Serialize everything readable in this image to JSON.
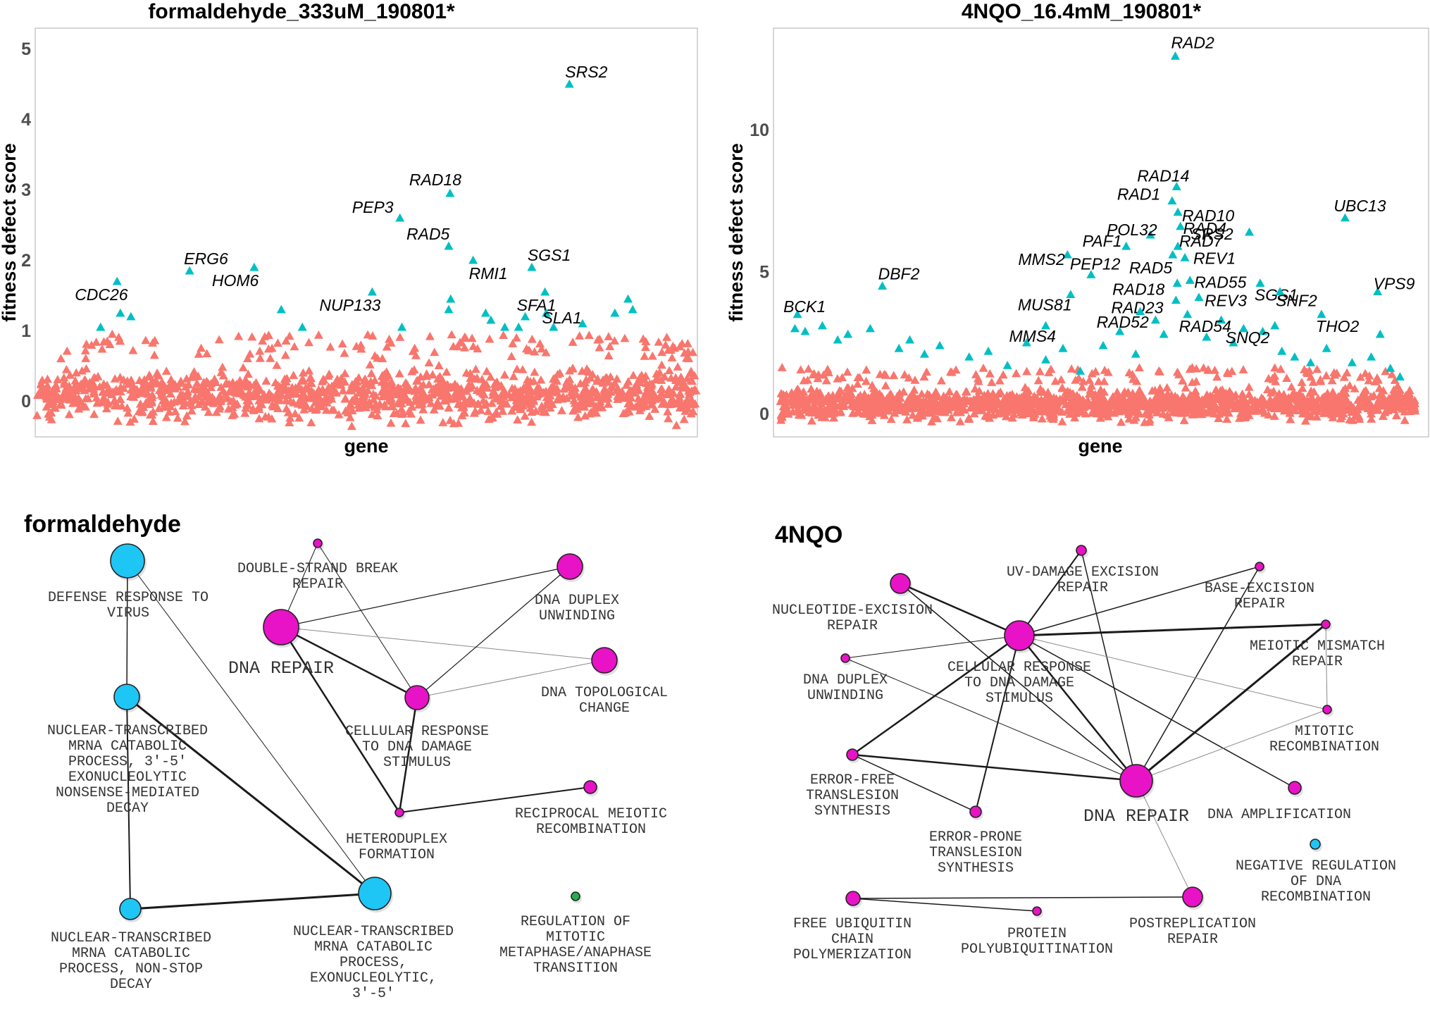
{
  "chart_data": [
    {
      "type": "scatter",
      "title": "formaldehyde_333uM_190801*",
      "xlabel": "gene",
      "ylabel": "fitness defect score",
      "yticks": [
        0,
        1,
        2,
        3,
        4,
        5
      ],
      "ylim": [
        -0.5,
        5.3
      ],
      "grid": false,
      "background_cloud": {
        "color": "#F8766D",
        "y_range": [
          -0.4,
          0.6
        ],
        "x_range": [
          0,
          1
        ],
        "count": 1200
      },
      "colors": {
        "significant": "#00BFC4",
        "nonsignificant": "#F8766D"
      },
      "labeled_points": [
        {
          "gene": "SRS2",
          "x": 0.808,
          "y": 4.5
        },
        {
          "gene": "RAD18",
          "x": 0.627,
          "y": 2.95
        },
        {
          "gene": "PEP3",
          "x": 0.551,
          "y": 2.6
        },
        {
          "gene": "RAD5",
          "x": 0.625,
          "y": 2.2
        },
        {
          "gene": "SGS1",
          "x": 0.751,
          "y": 1.9
        },
        {
          "gene": "RMI1",
          "x": 0.662,
          "y": 2.0
        },
        {
          "gene": "SFA1",
          "x": 0.771,
          "y": 1.55
        },
        {
          "gene": "SLA1",
          "x": 0.773,
          "y": 1.25
        },
        {
          "gene": "ERG6",
          "x": 0.232,
          "y": 1.85
        },
        {
          "gene": "HOM6",
          "x": 0.33,
          "y": 1.9
        },
        {
          "gene": "NUP133",
          "x": 0.509,
          "y": 1.55
        },
        {
          "gene": "CDC26",
          "x": 0.122,
          "y": 1.7
        }
      ],
      "other_points": [
        {
          "x": 0.097,
          "y": 1.05
        },
        {
          "x": 0.127,
          "y": 1.25
        },
        {
          "x": 0.143,
          "y": 1.2
        },
        {
          "x": 0.371,
          "y": 1.3
        },
        {
          "x": 0.403,
          "y": 1.05
        },
        {
          "x": 0.554,
          "y": 1.05
        },
        {
          "x": 0.625,
          "y": 1.3
        },
        {
          "x": 0.628,
          "y": 1.45
        },
        {
          "x": 0.681,
          "y": 1.25
        },
        {
          "x": 0.689,
          "y": 1.15
        },
        {
          "x": 0.71,
          "y": 1.05
        },
        {
          "x": 0.731,
          "y": 1.05
        },
        {
          "x": 0.741,
          "y": 1.2
        },
        {
          "x": 0.784,
          "y": 1.05
        },
        {
          "x": 0.828,
          "y": 1.1
        },
        {
          "x": 0.877,
          "y": 1.25
        },
        {
          "x": 0.897,
          "y": 1.45
        },
        {
          "x": 0.904,
          "y": 1.3
        }
      ]
    },
    {
      "type": "scatter",
      "title": "4NQO_16.4mM_190801*",
      "xlabel": "gene",
      "ylabel": "fitness defect score",
      "yticks": [
        0,
        5,
        10
      ],
      "ylim": [
        -0.8,
        13.6
      ],
      "grid": false,
      "background_cloud": {
        "color": "#F8766D",
        "y_range": [
          -0.4,
          1.1
        ],
        "x_range": [
          0,
          1
        ],
        "count": 1400
      },
      "colors": {
        "significant": "#00BFC4",
        "nonsignificant": "#F8766D"
      },
      "labeled_points": [
        {
          "gene": "RAD2",
          "x": 0.623,
          "y": 12.6
        },
        {
          "gene": "RAD14",
          "x": 0.625,
          "y": 8.0
        },
        {
          "gene": "RAD1",
          "x": 0.618,
          "y": 7.5
        },
        {
          "gene": "RAD10",
          "x": 0.627,
          "y": 7.1
        },
        {
          "gene": "RAD4",
          "x": 0.631,
          "y": 6.6
        },
        {
          "gene": "POL32",
          "x": 0.584,
          "y": 6.3
        },
        {
          "gene": "RAD7",
          "x": 0.627,
          "y": 5.9
        },
        {
          "gene": "RAD5",
          "x": 0.619,
          "y": 5.6
        },
        {
          "gene": "PAF1",
          "x": 0.546,
          "y": 5.9
        },
        {
          "gene": "REV1",
          "x": 0.638,
          "y": 5.5
        },
        {
          "gene": "MMS2",
          "x": 0.454,
          "y": 5.6
        },
        {
          "gene": "PEP12",
          "x": 0.491,
          "y": 4.9
        },
        {
          "gene": "MUS81",
          "x": 0.459,
          "y": 4.2
        },
        {
          "gene": "RAD18",
          "x": 0.626,
          "y": 4.6
        },
        {
          "gene": "RAD55",
          "x": 0.646,
          "y": 4.7
        },
        {
          "gene": "RAD23",
          "x": 0.624,
          "y": 4.0
        },
        {
          "gene": "REV3",
          "x": 0.66,
          "y": 4.1
        },
        {
          "gene": "RAD52",
          "x": 0.568,
          "y": 3.6
        },
        {
          "gene": "RAD54",
          "x": 0.642,
          "y": 3.5
        },
        {
          "gene": "MMS4",
          "x": 0.42,
          "y": 3.1
        },
        {
          "gene": "SRS2",
          "x": 0.739,
          "y": 6.4
        },
        {
          "gene": "SGS1",
          "x": 0.756,
          "y": 4.6
        },
        {
          "gene": "SNF2",
          "x": 0.787,
          "y": 4.3
        },
        {
          "gene": "SNQ2",
          "x": 0.779,
          "y": 3.1
        },
        {
          "gene": "THO2",
          "x": 0.852,
          "y": 3.5
        },
        {
          "gene": "UBC13",
          "x": 0.889,
          "y": 6.9
        },
        {
          "gene": "VPS9",
          "x": 0.94,
          "y": 4.3
        },
        {
          "gene": "DBF2",
          "x": 0.164,
          "y": 4.5
        },
        {
          "gene": "BCK1",
          "x": 0.031,
          "y": 3.5
        }
      ],
      "other_points": [
        {
          "x": 0.027,
          "y": 3.0
        },
        {
          "x": 0.043,
          "y": 2.9
        },
        {
          "x": 0.07,
          "y": 3.1
        },
        {
          "x": 0.094,
          "y": 2.6
        },
        {
          "x": 0.11,
          "y": 2.8
        },
        {
          "x": 0.145,
          "y": 3.0
        },
        {
          "x": 0.19,
          "y": 2.3
        },
        {
          "x": 0.207,
          "y": 2.6
        },
        {
          "x": 0.23,
          "y": 2.1
        },
        {
          "x": 0.254,
          "y": 2.4
        },
        {
          "x": 0.3,
          "y": 2.0
        },
        {
          "x": 0.33,
          "y": 2.2
        },
        {
          "x": 0.36,
          "y": 1.7
        },
        {
          "x": 0.39,
          "y": 2.5
        },
        {
          "x": 0.42,
          "y": 1.9
        },
        {
          "x": 0.447,
          "y": 2.3
        },
        {
          "x": 0.474,
          "y": 1.5
        },
        {
          "x": 0.51,
          "y": 2.4
        },
        {
          "x": 0.536,
          "y": 2.9
        },
        {
          "x": 0.561,
          "y": 2.1
        },
        {
          "x": 0.592,
          "y": 3.3
        },
        {
          "x": 0.605,
          "y": 2.8
        },
        {
          "x": 0.672,
          "y": 2.7
        },
        {
          "x": 0.695,
          "y": 3.3
        },
        {
          "x": 0.714,
          "y": 2.5
        },
        {
          "x": 0.73,
          "y": 3.0
        },
        {
          "x": 0.76,
          "y": 2.9
        },
        {
          "x": 0.79,
          "y": 2.2
        },
        {
          "x": 0.81,
          "y": 2.0
        },
        {
          "x": 0.835,
          "y": 1.8
        },
        {
          "x": 0.86,
          "y": 2.3
        },
        {
          "x": 0.9,
          "y": 1.8
        },
        {
          "x": 0.93,
          "y": 2.0
        },
        {
          "x": 0.944,
          "y": 2.8
        },
        {
          "x": 0.96,
          "y": 1.6
        },
        {
          "x": 0.975,
          "y": 1.3
        }
      ]
    }
  ],
  "networks": [
    {
      "title": "formaldehyde",
      "nodes": [
        {
          "id": "defense",
          "label_lines": [
            "DEFENSE RESPONSE TO",
            "VIRUS"
          ],
          "color": "#1EC6F5",
          "r": 24
        },
        {
          "id": "dsb",
          "label_lines": [
            "DOUBLE-STRAND BREAK",
            "REPAIR"
          ],
          "color": "#E812C7",
          "r": 6
        },
        {
          "id": "duplex",
          "label_lines": [
            "DNA DUPLEX",
            "UNWINDING"
          ],
          "color": "#E812C7",
          "r": 18
        },
        {
          "id": "dnarepair",
          "label_lines": [
            "DNA REPAIR"
          ],
          "color": "#E812C7",
          "r": 25,
          "big": true
        },
        {
          "id": "topo",
          "label_lines": [
            "DNA TOPOLOGICAL",
            "CHANGE"
          ],
          "color": "#E812C7",
          "r": 18
        },
        {
          "id": "cellresp",
          "label_lines": [
            "CELLULAR RESPONSE",
            "TO DNA DAMAGE",
            "STIMULUS"
          ],
          "color": "#E812C7",
          "r": 17
        },
        {
          "id": "nmd",
          "label_lines": [
            "NUCLEAR-TRANSCRIBED",
            "MRNA CATABOLIC",
            "PROCESS, 3'-5'",
            "EXONUCLEOLYTIC",
            "NONSENSE-MEDIATED",
            "DECAY"
          ],
          "color": "#1EC6F5",
          "r": 18
        },
        {
          "id": "recip",
          "label_lines": [
            "RECIPROCAL MEIOTIC",
            "RECOMBINATION"
          ],
          "color": "#E812C7",
          "r": 9
        },
        {
          "id": "hetero",
          "label_lines": [
            "HETERODUPLEX",
            "FORMATION"
          ],
          "color": "#E812C7",
          "r": 6
        },
        {
          "id": "regmit",
          "label_lines": [
            "REGULATION OF",
            "MITOTIC",
            "METAPHASE/ANAPHASE",
            "TRANSITION"
          ],
          "color": "#22B14C",
          "r": 6
        },
        {
          "id": "nonstop",
          "label_lines": [
            "NUCLEAR-TRANSCRIBED",
            "MRNA CATABOLIC",
            "PROCESS, NON-STOP",
            "DECAY"
          ],
          "color": "#1EC6F5",
          "r": 15
        },
        {
          "id": "exonuc",
          "label_lines": [
            "NUCLEAR-TRANSCRIBED",
            "MRNA CATABOLIC",
            "PROCESS,",
            "EXONUCLEOLYTIC,",
            "3'-5'"
          ],
          "color": "#1EC6F5",
          "r": 23
        }
      ],
      "edges": [
        {
          "s": "defense",
          "t": "nmd",
          "w": 1.5
        },
        {
          "s": "defense",
          "t": "exonuc",
          "w": 1
        },
        {
          "s": "nmd",
          "t": "nonstop",
          "w": 2
        },
        {
          "s": "nmd",
          "t": "exonuc",
          "w": 3
        },
        {
          "s": "nonstop",
          "t": "exonuc",
          "w": 3
        },
        {
          "s": "dsb",
          "t": "dnarepair",
          "w": 1
        },
        {
          "s": "dsb",
          "t": "cellresp",
          "w": 1
        },
        {
          "s": "dnarepair",
          "t": "duplex",
          "w": 1.2
        },
        {
          "s": "dnarepair",
          "t": "topo",
          "w": 1,
          "light": true
        },
        {
          "s": "dnarepair",
          "t": "cellresp",
          "w": 2.5
        },
        {
          "s": "dnarepair",
          "t": "hetero",
          "w": 2.5
        },
        {
          "s": "cellresp",
          "t": "duplex",
          "w": 1.2
        },
        {
          "s": "cellresp",
          "t": "topo",
          "w": 1,
          "light": true
        },
        {
          "s": "cellresp",
          "t": "hetero",
          "w": 2.5
        },
        {
          "s": "hetero",
          "t": "recip",
          "w": 2
        }
      ]
    },
    {
      "title": "4NQO",
      "nodes": [
        {
          "id": "uv",
          "label_lines": [
            "UV-DAMAGE EXCISION",
            "REPAIR"
          ],
          "color": "#E812C7",
          "r": 7
        },
        {
          "id": "bex",
          "label_lines": [
            "BASE-EXCISION",
            "REPAIR"
          ],
          "color": "#E812C7",
          "r": 6
        },
        {
          "id": "ner",
          "label_lines": [
            "NUCLEOTIDE-EXCISION",
            "REPAIR"
          ],
          "color": "#E812C7",
          "r": 14
        },
        {
          "id": "cellresp",
          "label_lines": [
            "CELLULAR RESPONSE",
            "TO DNA DAMAGE",
            "STIMULUS"
          ],
          "color": "#E812C7",
          "r": 21
        },
        {
          "id": "mmr",
          "label_lines": [
            "MEIOTIC MISMATCH",
            "REPAIR"
          ],
          "color": "#E812C7",
          "r": 6
        },
        {
          "id": "duplex",
          "label_lines": [
            "DNA DUPLEX",
            "UNWINDING"
          ],
          "color": "#E812C7",
          "r": 6
        },
        {
          "id": "mitrec",
          "label_lines": [
            "MITOTIC",
            "RECOMBINATION"
          ],
          "color": "#E812C7",
          "r": 6
        },
        {
          "id": "errfree",
          "label_lines": [
            "ERROR-FREE",
            "TRANSLESION",
            "SYNTHESIS"
          ],
          "color": "#E812C7",
          "r": 8
        },
        {
          "id": "dnarepair",
          "label_lines": [
            "DNA REPAIR"
          ],
          "color": "#E812C7",
          "r": 23
        },
        {
          "id": "amp",
          "label_lines": [
            "DNA AMPLIFICATION"
          ],
          "color": "#E812C7",
          "r": 9
        },
        {
          "id": "errprone",
          "label_lines": [
            "ERROR-PRONE",
            "TRANSLESION",
            "SYNTHESIS"
          ],
          "color": "#E812C7",
          "r": 8
        },
        {
          "id": "negreg",
          "label_lines": [
            "NEGATIVE REGULATION",
            "OF DNA",
            "RECOMBINATION"
          ],
          "color": "#1EC6F5",
          "r": 7
        },
        {
          "id": "freeub",
          "label_lines": [
            "FREE UBIQUITIN",
            "CHAIN",
            "POLYMERIZATION"
          ],
          "color": "#E812C7",
          "r": 10
        },
        {
          "id": "polyub",
          "label_lines": [
            "PROTEIN",
            "POLYUBIQUITINATION"
          ],
          "color": "#E812C7",
          "r": 6
        },
        {
          "id": "postrep",
          "label_lines": [
            "POSTREPLICATION",
            "REPAIR"
          ],
          "color": "#E812C7",
          "r": 14
        }
      ],
      "edges": [
        {
          "s": "ner",
          "t": "cellresp",
          "w": 2.5
        },
        {
          "s": "ner",
          "t": "dnarepair",
          "w": 1.5
        },
        {
          "s": "uv",
          "t": "cellresp",
          "w": 2
        },
        {
          "s": "uv",
          "t": "dnarepair",
          "w": 1.5
        },
        {
          "s": "bex",
          "t": "cellresp",
          "w": 1.5
        },
        {
          "s": "bex",
          "t": "dnarepair",
          "w": 1.5
        },
        {
          "s": "cellresp",
          "t": "mmr",
          "w": 3
        },
        {
          "s": "cellresp",
          "t": "duplex",
          "w": 1
        },
        {
          "s": "cellresp",
          "t": "mitrec",
          "w": 1,
          "light": true
        },
        {
          "s": "cellresp",
          "t": "errfree",
          "w": 2.5
        },
        {
          "s": "cellresp",
          "t": "errprone",
          "w": 2
        },
        {
          "s": "cellresp",
          "t": "dnarepair",
          "w": 2.5
        },
        {
          "s": "cellresp",
          "t": "amp",
          "w": 1.5
        },
        {
          "s": "mmr",
          "t": "mitrec",
          "w": 1,
          "light": true
        },
        {
          "s": "mmr",
          "t": "dnarepair",
          "w": 3
        },
        {
          "s": "duplex",
          "t": "dnarepair",
          "w": 1
        },
        {
          "s": "mitrec",
          "t": "dnarepair",
          "w": 1,
          "light": true
        },
        {
          "s": "errfree",
          "t": "dnarepair",
          "w": 2.5
        },
        {
          "s": "errfree",
          "t": "errprone",
          "w": 1.5
        },
        {
          "s": "dnarepair",
          "t": "postrep",
          "w": 1,
          "light": true
        },
        {
          "s": "freeub",
          "t": "postrep",
          "w": 1.5
        },
        {
          "s": "freeub",
          "t": "polyub",
          "w": 1.5
        }
      ]
    }
  ]
}
